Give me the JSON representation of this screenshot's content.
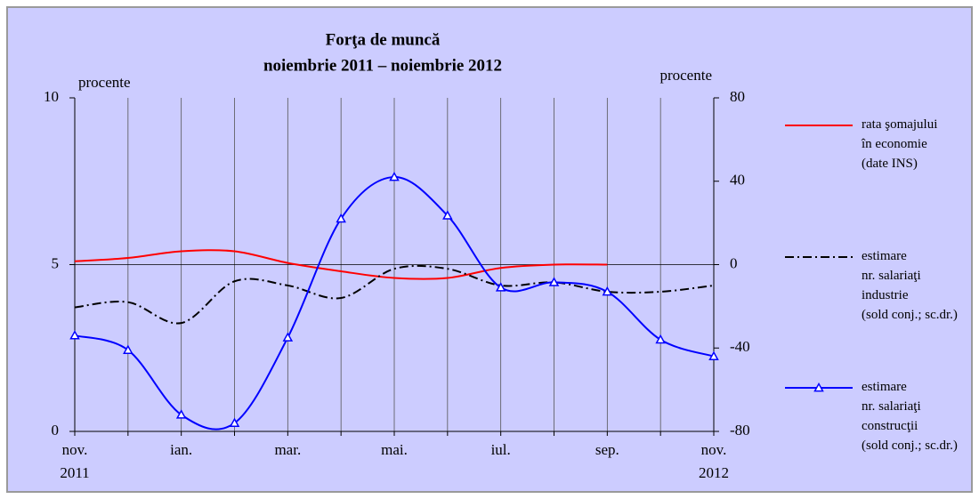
{
  "chart_data": {
    "type": "line",
    "title": "Forţa de muncă",
    "subtitle": "noiembrie 2011 – noiembrie 2012",
    "y_label": "procente",
    "y2_label": "procente",
    "categories": [
      "nov.\n2011",
      null,
      "ian.",
      null,
      "mar.",
      null,
      "mai.",
      null,
      "iul.",
      null,
      "sep.",
      null,
      "nov.\n2012"
    ],
    "ylim": [
      0,
      10
    ],
    "yticks": [
      0,
      5,
      10
    ],
    "y2lim": [
      -80,
      80
    ],
    "y2ticks": [
      -80,
      -40,
      0,
      40,
      80
    ],
    "series": [
      {
        "name": "rata şomajului\nîn economie\n(date INS)",
        "color": "#ff0000",
        "style": "solid",
        "marker": "none",
        "values": [
          5.1,
          5.2,
          5.4,
          5.4,
          5.05,
          4.8,
          4.6,
          4.6,
          4.9,
          5.0,
          5.0,
          null,
          null
        ]
      },
      {
        "name": "estimare\nnr. salariaţi\nindustrie\n(sold conj.; sc.dr.)",
        "color": "#000000",
        "style": "dashdot",
        "marker": "none",
        "axis": "y2",
        "values": [
          -20.5,
          -18,
          -28,
          -8,
          -10,
          -16,
          -2,
          -2,
          -10,
          -8.5,
          -13,
          -13,
          -10
        ]
      },
      {
        "name": "estimare\nnr. salariaţi\nconstrucţii\n(sold conj.; sc.dr.)",
        "color": "#0000ff",
        "style": "solid",
        "marker": "triangle",
        "axis": "y2",
        "values": [
          -34,
          -41,
          -72,
          -76,
          -35,
          22,
          42,
          23.5,
          -11,
          -8.5,
          -13,
          -36,
          -44
        ]
      }
    ]
  }
}
